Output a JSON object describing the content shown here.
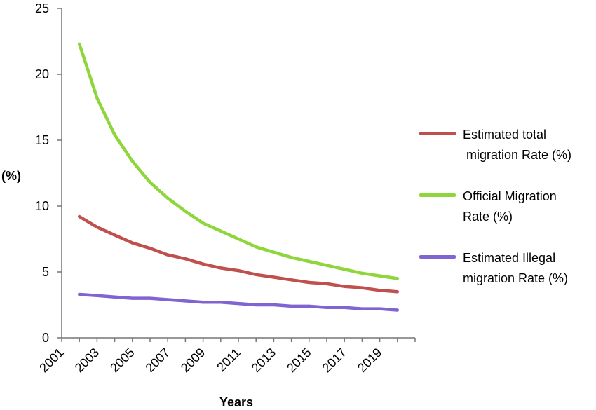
{
  "chart_data": {
    "type": "line",
    "title": "",
    "xlabel": "Years",
    "ylabel": "(%)",
    "ylim": [
      0,
      25
    ],
    "yticks": [
      0,
      5,
      10,
      15,
      20,
      25
    ],
    "xlim": [
      2001,
      2021
    ],
    "xticks": [
      2001,
      2003,
      2005,
      2007,
      2009,
      2011,
      2013,
      2015,
      2017,
      2019
    ],
    "grid": false,
    "legend_position": "right",
    "x": [
      2002,
      2003,
      2004,
      2005,
      2006,
      2007,
      2008,
      2009,
      2010,
      2011,
      2012,
      2013,
      2014,
      2015,
      2016,
      2017,
      2018,
      2019,
      2020
    ],
    "series": [
      {
        "name": "Estimated total\n migration Rate (%)",
        "color": "#c0504d",
        "values": [
          9.2,
          8.4,
          7.8,
          7.2,
          6.8,
          6.3,
          6.0,
          5.6,
          5.3,
          5.1,
          4.8,
          4.6,
          4.4,
          4.2,
          4.1,
          3.9,
          3.8,
          3.6,
          3.5
        ]
      },
      {
        "name": "Official Migration\nRate (%)",
        "color": "#8fd63d",
        "values": [
          22.3,
          18.2,
          15.4,
          13.4,
          11.8,
          10.6,
          9.6,
          8.7,
          8.1,
          7.5,
          6.9,
          6.5,
          6.1,
          5.8,
          5.5,
          5.2,
          4.9,
          4.7,
          4.5
        ]
      },
      {
        "name": "Estimated Illegal\nmigration Rate (%)",
        "color": "#8064d2",
        "values": [
          3.3,
          3.2,
          3.1,
          3.0,
          3.0,
          2.9,
          2.8,
          2.7,
          2.7,
          2.6,
          2.5,
          2.5,
          2.4,
          2.4,
          2.3,
          2.3,
          2.2,
          2.2,
          2.1
        ]
      }
    ]
  }
}
